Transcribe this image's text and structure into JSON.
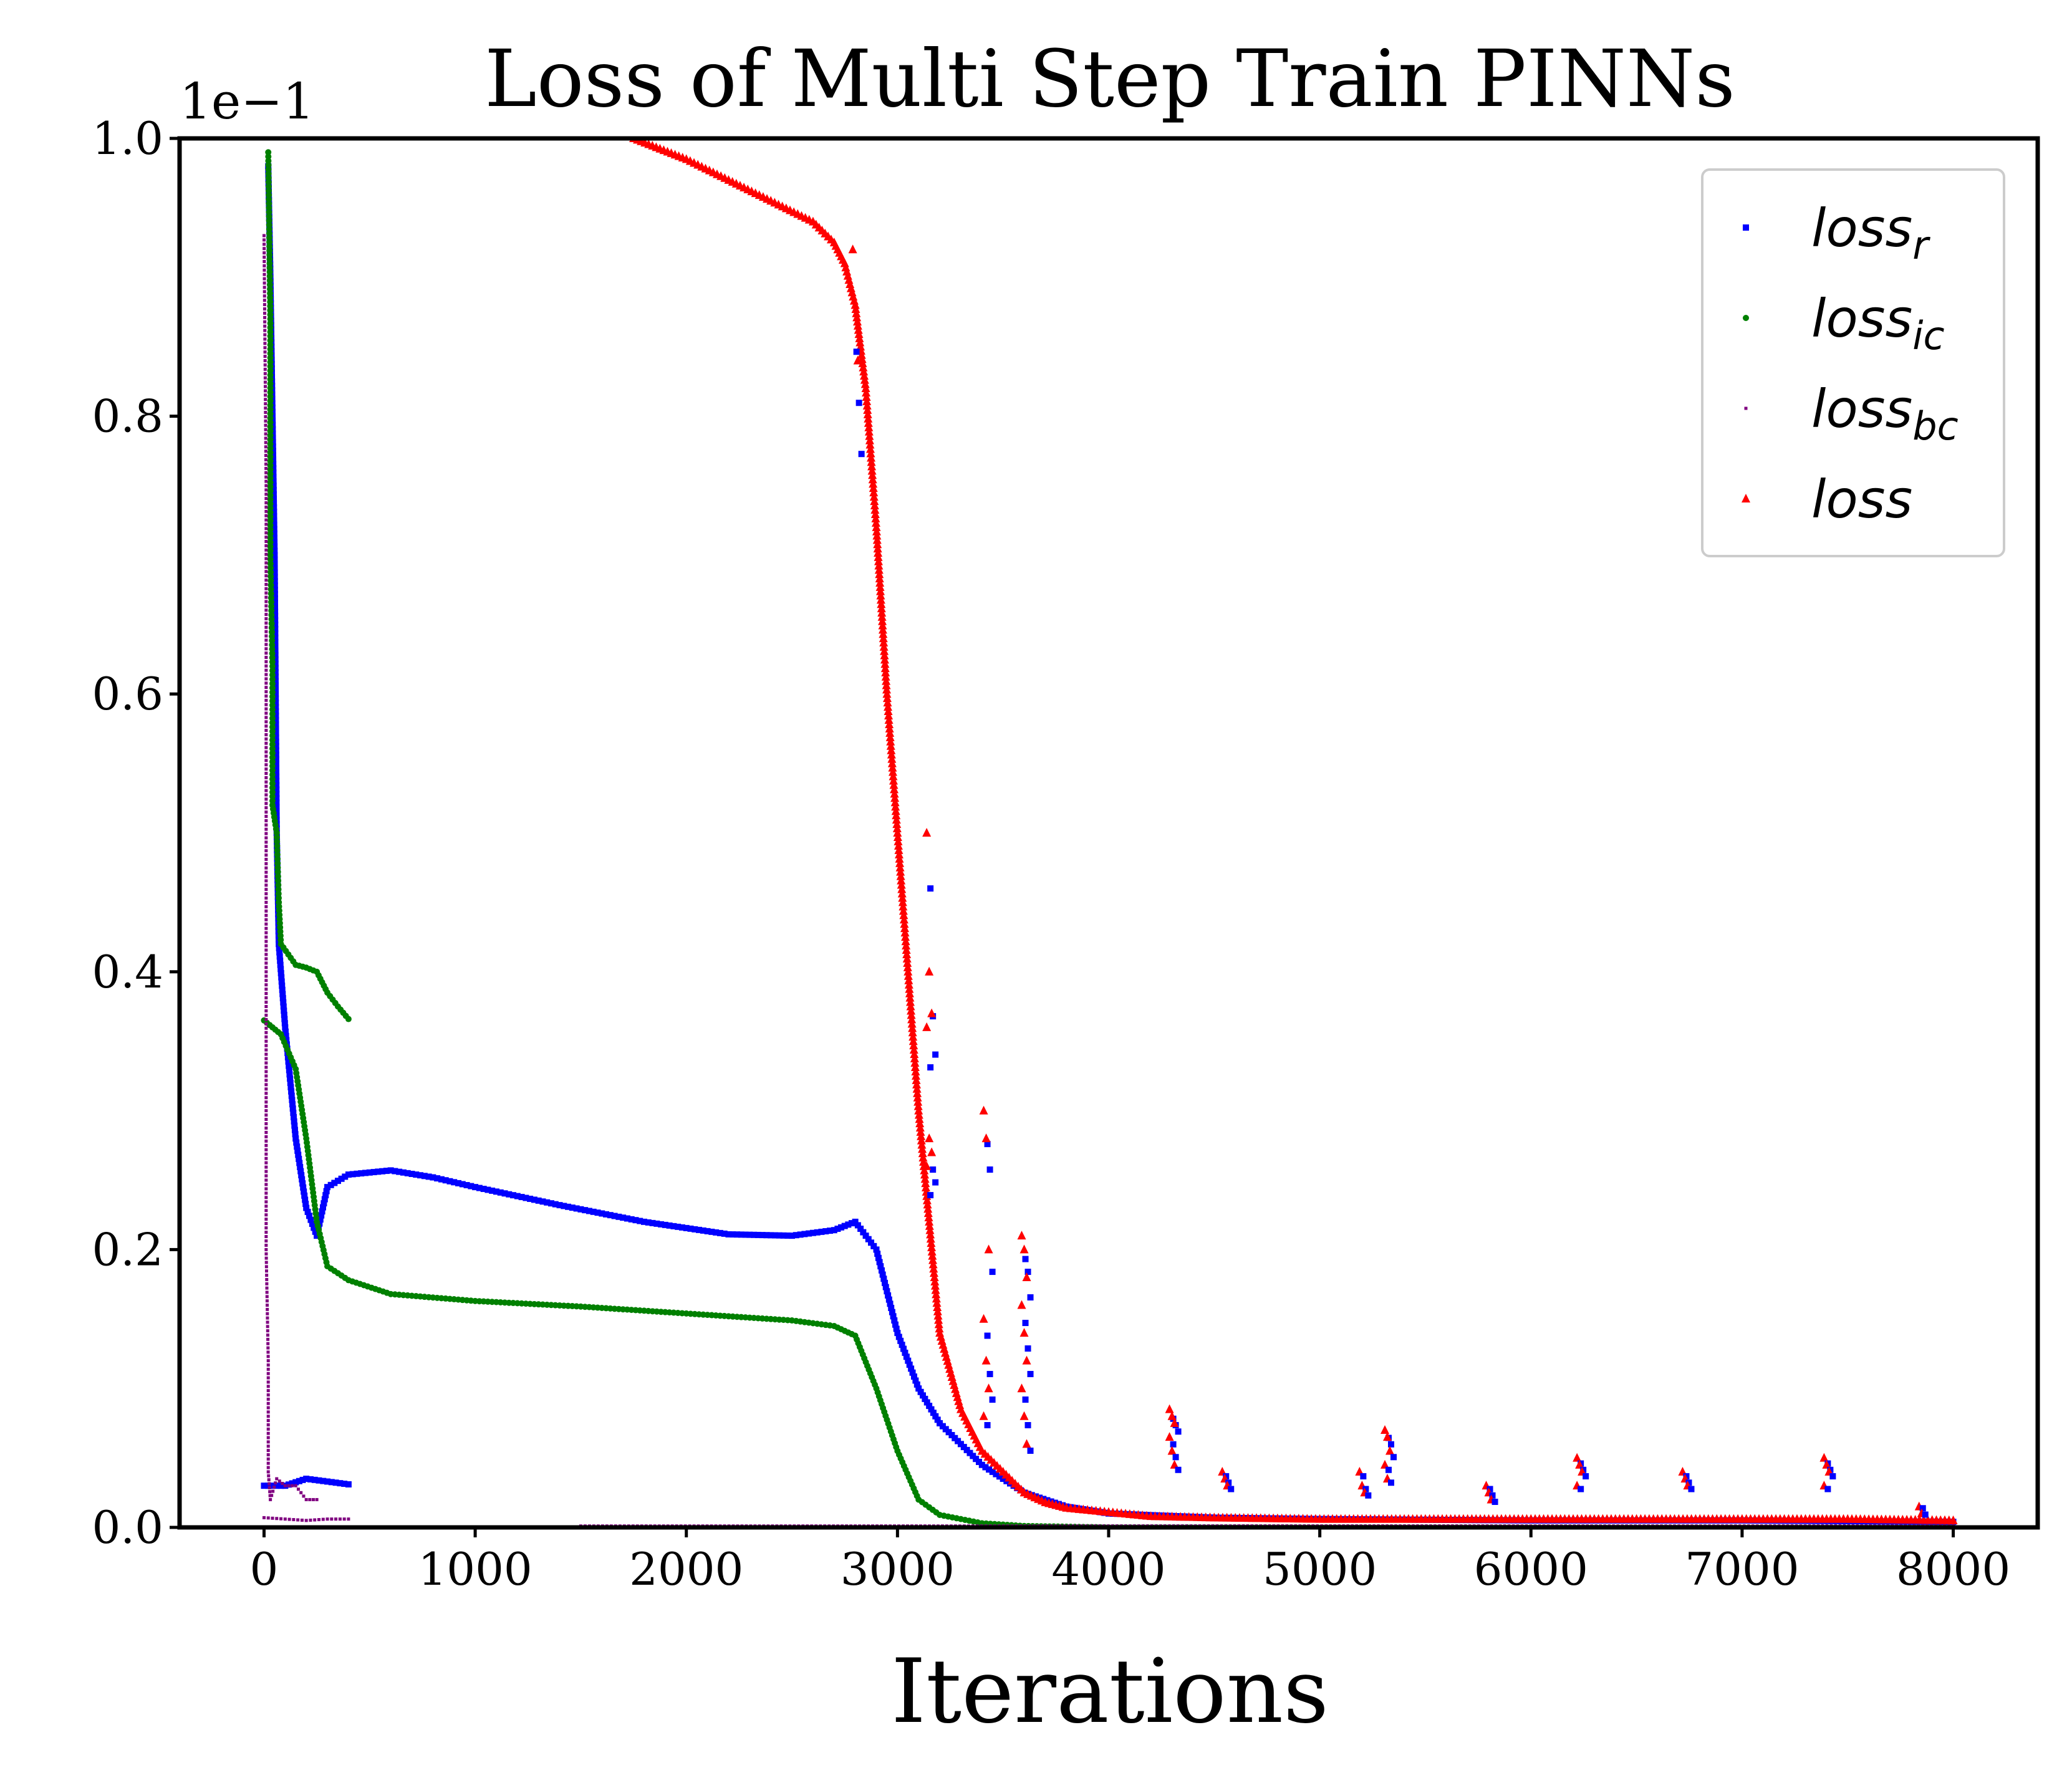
{
  "chart_data": {
    "type": "scatter",
    "title": "Loss of Multi Step Train PINNs",
    "xlabel": "Iterations",
    "ylabel": "",
    "y_offset_text": "1e−1",
    "xlim": [
      -400,
      8400
    ],
    "ylim": [
      0.0,
      1.0
    ],
    "x_ticks": [
      0,
      1000,
      2000,
      3000,
      4000,
      5000,
      6000,
      7000,
      8000
    ],
    "x_tick_labels": [
      "0",
      "1000",
      "2000",
      "3000",
      "4000",
      "5000",
      "6000",
      "7000",
      "8000"
    ],
    "y_ticks": [
      0.0,
      0.2,
      0.4,
      0.6,
      0.8,
      1.0
    ],
    "y_tick_labels": [
      "0.0",
      "0.2",
      "0.4",
      "0.6",
      "0.8",
      "1.0"
    ],
    "grid": false,
    "legend_position": "top-right",
    "series": [
      {
        "name": "loss_r",
        "legend_base": "loss",
        "legend_sub": "r",
        "color": "#0000ff",
        "marker": "square",
        "segments": [
          [
            [
              20,
              0.98
            ],
            [
              30,
              0.9
            ],
            [
              40,
              0.8
            ],
            [
              50,
              0.7
            ],
            [
              60,
              0.5
            ],
            [
              70,
              0.42
            ],
            [
              100,
              0.36
            ],
            [
              150,
              0.28
            ],
            [
              200,
              0.23
            ],
            [
              250,
              0.21
            ],
            [
              300,
              0.245
            ],
            [
              400,
              0.254
            ],
            [
              600,
              0.257
            ],
            [
              800,
              0.252
            ],
            [
              1000,
              0.245
            ],
            [
              1400,
              0.232
            ],
            [
              1800,
              0.22
            ],
            [
              2200,
              0.211
            ],
            [
              2500,
              0.21
            ],
            [
              2700,
              0.214
            ],
            [
              2800,
              0.22
            ],
            [
              2900,
              0.2
            ],
            [
              3000,
              0.14
            ],
            [
              3100,
              0.1
            ],
            [
              3200,
              0.075
            ],
            [
              3400,
              0.045
            ],
            [
              3600,
              0.025
            ],
            [
              3800,
              0.015
            ],
            [
              4000,
              0.01
            ],
            [
              4500,
              0.007
            ],
            [
              5000,
              0.006
            ],
            [
              6000,
              0.005
            ],
            [
              7000,
              0.005
            ],
            [
              8000,
              0.004
            ]
          ],
          [
            [
              0,
              0.03
            ],
            [
              100,
              0.03
            ],
            [
              200,
              0.035
            ],
            [
              300,
              0.033
            ],
            [
              400,
              0.031
            ]
          ]
        ]
      },
      {
        "name": "loss_ic",
        "legend_base": "loss",
        "legend_sub": "ic",
        "color": "#008000",
        "marker": "circle",
        "segments": [
          [
            [
              20,
              0.99
            ],
            [
              30,
              0.87
            ],
            [
              30,
              0.78
            ],
            [
              30,
              0.7
            ],
            [
              40,
              0.62
            ],
            [
              40,
              0.52
            ],
            [
              60,
              0.5
            ],
            [
              70,
              0.45
            ],
            [
              80,
              0.42
            ],
            [
              150,
              0.405
            ],
            [
              200,
              0.403
            ],
            [
              250,
              0.4
            ],
            [
              300,
              0.385
            ],
            [
              350,
              0.375
            ],
            [
              400,
              0.366
            ]
          ],
          [
            [
              0,
              0.365
            ],
            [
              80,
              0.355
            ],
            [
              150,
              0.33
            ],
            [
              200,
              0.28
            ],
            [
              250,
              0.22
            ],
            [
              300,
              0.188
            ],
            [
              400,
              0.178
            ],
            [
              600,
              0.168
            ],
            [
              1000,
              0.163
            ],
            [
              1500,
              0.159
            ],
            [
              2000,
              0.154
            ],
            [
              2500,
              0.149
            ],
            [
              2700,
              0.145
            ],
            [
              2800,
              0.138
            ],
            [
              2900,
              0.1
            ],
            [
              3000,
              0.055
            ],
            [
              3100,
              0.02
            ],
            [
              3200,
              0.009
            ],
            [
              3400,
              0.003
            ],
            [
              3600,
              0.001
            ],
            [
              4000,
              0.0
            ],
            [
              8000,
              0.0
            ]
          ]
        ]
      },
      {
        "name": "loss_bc",
        "legend_base": "loss",
        "legend_sub": "bc",
        "color": "#800080",
        "marker": "point",
        "segments": [
          [
            [
              0,
              0.93
            ],
            [
              10,
              0.75
            ],
            [
              10,
              0.58
            ],
            [
              10,
              0.45
            ],
            [
              10,
              0.3
            ],
            [
              10,
              0.2
            ],
            [
              20,
              0.12
            ],
            [
              20,
              0.04
            ],
            [
              30,
              0.02
            ],
            [
              60,
              0.035
            ],
            [
              100,
              0.03
            ],
            [
              150,
              0.03
            ],
            [
              200,
              0.02
            ],
            [
              250,
              0.02
            ]
          ],
          [
            [
              0,
              0.007
            ],
            [
              100,
              0.006
            ],
            [
              200,
              0.005
            ],
            [
              300,
              0.006
            ],
            [
              400,
              0.006
            ]
          ],
          [
            [
              1500,
              0.001
            ],
            [
              8000,
              0.001
            ]
          ]
        ]
      },
      {
        "name": "loss",
        "legend_base": "loss",
        "legend_sub": "",
        "color": "#ff0000",
        "marker": "triangle",
        "segments": [
          [
            [
              1750,
              1.0
            ],
            [
              2000,
              0.985
            ],
            [
              2200,
              0.97
            ],
            [
              2400,
              0.955
            ],
            [
              2600,
              0.94
            ],
            [
              2700,
              0.925
            ],
            [
              2750,
              0.91
            ],
            [
              2800,
              0.88
            ],
            [
              2850,
              0.82
            ],
            [
              2900,
              0.72
            ],
            [
              2950,
              0.6
            ],
            [
              3000,
              0.5
            ],
            [
              3050,
              0.4
            ],
            [
              3100,
              0.3
            ],
            [
              3150,
              0.22
            ],
            [
              3200,
              0.14
            ],
            [
              3300,
              0.085
            ],
            [
              3400,
              0.055
            ],
            [
              3500,
              0.04
            ],
            [
              3600,
              0.025
            ],
            [
              3700,
              0.018
            ],
            [
              3800,
              0.014
            ],
            [
              4000,
              0.011
            ],
            [
              4200,
              0.008
            ],
            [
              4500,
              0.007
            ],
            [
              5000,
              0.006
            ],
            [
              5500,
              0.006
            ],
            [
              6000,
              0.006
            ],
            [
              6500,
              0.006
            ],
            [
              7000,
              0.006
            ],
            [
              7500,
              0.006
            ],
            [
              8000,
              0.005
            ]
          ]
        ]
      }
    ],
    "spikes": [
      {
        "x": 2800,
        "values": [
          0.92,
          0.88,
          0.84
        ]
      },
      {
        "x": 3150,
        "values": [
          0.5,
          0.4,
          0.37,
          0.36,
          0.28,
          0.27,
          0.26
        ]
      },
      {
        "x": 3420,
        "values": [
          0.3,
          0.28,
          0.2,
          0.15,
          0.12,
          0.1,
          0.08
        ]
      },
      {
        "x": 3600,
        "values": [
          0.21,
          0.2,
          0.18,
          0.16,
          0.14,
          0.12,
          0.1,
          0.08,
          0.06
        ]
      },
      {
        "x": 4300,
        "values": [
          0.085,
          0.08,
          0.075,
          0.065,
          0.055,
          0.045
        ]
      },
      {
        "x": 4550,
        "values": [
          0.04,
          0.035,
          0.03
        ]
      },
      {
        "x": 5200,
        "values": [
          0.04,
          0.03,
          0.025
        ]
      },
      {
        "x": 5320,
        "values": [
          0.07,
          0.065,
          0.055,
          0.045,
          0.035
        ]
      },
      {
        "x": 5800,
        "values": [
          0.03,
          0.025,
          0.02
        ]
      },
      {
        "x": 6230,
        "values": [
          0.05,
          0.045,
          0.04,
          0.03
        ]
      },
      {
        "x": 6730,
        "values": [
          0.04,
          0.035,
          0.03
        ]
      },
      {
        "x": 7400,
        "values": [
          0.05,
          0.045,
          0.04,
          0.03
        ]
      },
      {
        "x": 7850,
        "values": [
          0.015,
          0.01
        ]
      }
    ]
  }
}
